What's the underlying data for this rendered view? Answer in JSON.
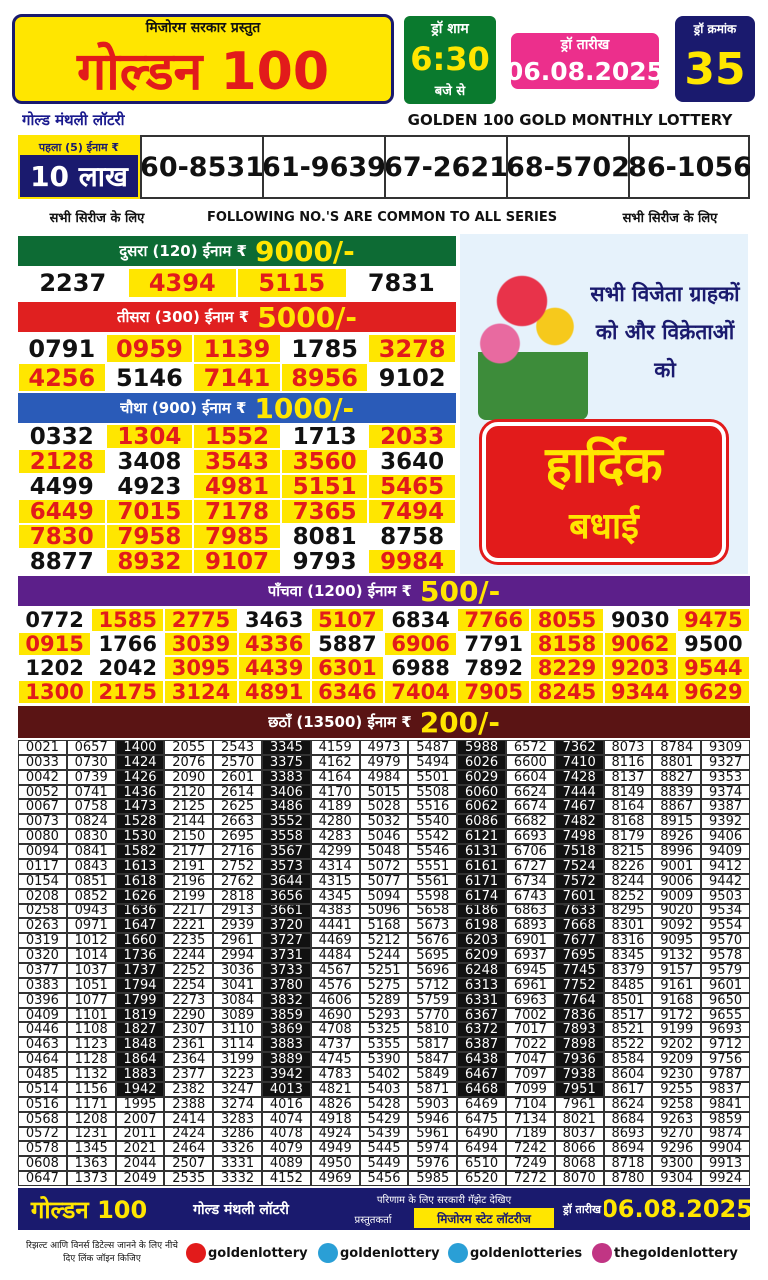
{
  "header": {
    "presenter": "मिजोरम सरकार प्रस्तुत",
    "title": "गोल्डन 100",
    "draw_time_label": "ड्रॉ शाम",
    "draw_time": "6:30",
    "draw_time_suffix": "बजे से",
    "draw_date_label": "ड्रॉ तारीख",
    "draw_date": "06.08.2025",
    "draw_no_label": "ड्रॉ क्रमांक",
    "draw_no": "35",
    "subtitle_hi": "गोल्ड मंथली लॉटरी",
    "subtitle_en": "GOLDEN 100 GOLD MONTHLY LOTTERY"
  },
  "first_prize": {
    "label": "पहला (5) ईनाम ₹",
    "amount": "10 लाख",
    "numbers": [
      "60-8531",
      "61-9639",
      "67-2621",
      "68-5702",
      "86-1056"
    ]
  },
  "common_note": {
    "left": "सभी सिरीज के लिए",
    "center": "FOLLOWING NO.'S ARE COMMON TO ALL SERIES",
    "right": "सभी सिरीज के लिए"
  },
  "prizes": [
    {
      "label": "दुसरा (120) ईनाम ₹",
      "amount": "9000/-",
      "rows": [
        [
          "2237",
          "4394",
          "5115",
          "7831"
        ]
      ]
    },
    {
      "label": "तीसरा (300) ईनाम ₹",
      "amount": "5000/-",
      "rows": [
        [
          "0791",
          "0959",
          "1139",
          "1785",
          "3278"
        ],
        [
          "4256",
          "5146",
          "7141",
          "8956",
          "9102"
        ]
      ]
    },
    {
      "label": "चौथा (900) ईनाम ₹",
      "amount": "1000/-",
      "rows": [
        [
          "0332",
          "1304",
          "1552",
          "1713",
          "2033"
        ],
        [
          "2128",
          "3408",
          "3543",
          "3560",
          "3640"
        ],
        [
          "4499",
          "4923",
          "4981",
          "5151",
          "5465"
        ],
        [
          "6449",
          "7015",
          "7178",
          "7365",
          "7494"
        ],
        [
          "7830",
          "7958",
          "7985",
          "8081",
          "8758"
        ],
        [
          "8877",
          "8932",
          "9107",
          "9793",
          "9984"
        ]
      ]
    },
    {
      "label": "पाँचवा (1200) ईनाम ₹",
      "amount": "500/-",
      "rows": [
        [
          "0772",
          "1585",
          "2775",
          "3463",
          "5107",
          "6834",
          "7766",
          "8055",
          "9030",
          "9475"
        ],
        [
          "0915",
          "1766",
          "3039",
          "4336",
          "5887",
          "6906",
          "7791",
          "8158",
          "9062",
          "9500"
        ],
        [
          "1202",
          "2042",
          "3095",
          "4439",
          "6301",
          "6988",
          "7892",
          "8229",
          "9203",
          "9544"
        ],
        [
          "1300",
          "2175",
          "3124",
          "4891",
          "6346",
          "7404",
          "7905",
          "8245",
          "9344",
          "9629"
        ]
      ]
    }
  ],
  "sixth_prize": {
    "label": "छठाँ (13500) ईनाम ₹",
    "amount": "200/-",
    "columns": [
      [
        "0021",
        "0033",
        "0042",
        "0052",
        "0067",
        "0073",
        "0080",
        "0094",
        "0117",
        "0154",
        "0208",
        "0258",
        "0263",
        "0319",
        "0320",
        "0377",
        "0383",
        "0396",
        "0409",
        "0446",
        "0463",
        "0464",
        "0485",
        "0514",
        "0516",
        "0568",
        "0572",
        "0578",
        "0608",
        "0647"
      ],
      [
        "0657",
        "0730",
        "0739",
        "0741",
        "0758",
        "0824",
        "0830",
        "0841",
        "0843",
        "0851",
        "0852",
        "0943",
        "0971",
        "1012",
        "1014",
        "1037",
        "1051",
        "1077",
        "1101",
        "1108",
        "1123",
        "1128",
        "1132",
        "1156",
        "1171",
        "1208",
        "1231",
        "1345",
        "1363",
        "1373"
      ],
      [
        "1400",
        "1424",
        "1426",
        "1436",
        "1473",
        "1528",
        "1530",
        "1582",
        "1613",
        "1618",
        "1626",
        "1636",
        "1647",
        "1660",
        "1736",
        "1737",
        "1794",
        "1799",
        "1819",
        "1827",
        "1848",
        "1864",
        "1883",
        "1942",
        "1995",
        "2007",
        "2011",
        "2021",
        "2044",
        "2049"
      ],
      [
        "2055",
        "2076",
        "2090",
        "2120",
        "2125",
        "2144",
        "2150",
        "2177",
        "2191",
        "2196",
        "2199",
        "2217",
        "2221",
        "2235",
        "2244",
        "2252",
        "2254",
        "2273",
        "2290",
        "2307",
        "2361",
        "2364",
        "2377",
        "2382",
        "2388",
        "2414",
        "2424",
        "2464",
        "2507",
        "2535"
      ],
      [
        "2543",
        "2570",
        "2601",
        "2614",
        "2625",
        "2663",
        "2695",
        "2716",
        "2752",
        "2762",
        "2818",
        "2913",
        "2939",
        "2961",
        "2994",
        "3036",
        "3041",
        "3084",
        "3089",
        "3110",
        "3114",
        "3199",
        "3223",
        "3247",
        "3274",
        "3283",
        "3286",
        "3326",
        "3331",
        "3332"
      ],
      [
        "3345",
        "3375",
        "3383",
        "3406",
        "3486",
        "3552",
        "3558",
        "3567",
        "3573",
        "3644",
        "3656",
        "3661",
        "3720",
        "3727",
        "3731",
        "3733",
        "3780",
        "3832",
        "3859",
        "3869",
        "3883",
        "3889",
        "3942",
        "4013",
        "4016",
        "4074",
        "4078",
        "4079",
        "4089",
        "4152"
      ],
      [
        "4159",
        "4162",
        "4164",
        "4170",
        "4189",
        "4280",
        "4283",
        "4299",
        "4314",
        "4315",
        "4345",
        "4383",
        "4441",
        "4469",
        "4484",
        "4567",
        "4576",
        "4606",
        "4690",
        "4708",
        "4737",
        "4745",
        "4783",
        "4821",
        "4826",
        "4918",
        "4924",
        "4949",
        "4950",
        "4969"
      ],
      [
        "4973",
        "4979",
        "4984",
        "5015",
        "5028",
        "5032",
        "5046",
        "5048",
        "5072",
        "5077",
        "5094",
        "5096",
        "5168",
        "5212",
        "5244",
        "5251",
        "5275",
        "5289",
        "5293",
        "5325",
        "5355",
        "5390",
        "5402",
        "5403",
        "5428",
        "5429",
        "5439",
        "5445",
        "5449",
        "5456"
      ],
      [
        "5487",
        "5494",
        "5501",
        "5508",
        "5516",
        "5540",
        "5542",
        "5546",
        "5551",
        "5561",
        "5598",
        "5658",
        "5673",
        "5676",
        "5695",
        "5696",
        "5712",
        "5759",
        "5770",
        "5810",
        "5817",
        "5847",
        "5849",
        "5871",
        "5903",
        "5946",
        "5961",
        "5974",
        "5976",
        "5985"
      ],
      [
        "5988",
        "6026",
        "6029",
        "6060",
        "6062",
        "6086",
        "6121",
        "6131",
        "6161",
        "6171",
        "6174",
        "6186",
        "6198",
        "6203",
        "6209",
        "6248",
        "6313",
        "6331",
        "6367",
        "6372",
        "6387",
        "6438",
        "6467",
        "6468",
        "6469",
        "6475",
        "6490",
        "6494",
        "6510",
        "6520"
      ],
      [
        "6572",
        "6600",
        "6604",
        "6624",
        "6674",
        "6682",
        "6693",
        "6706",
        "6727",
        "6734",
        "6743",
        "6863",
        "6893",
        "6901",
        "6937",
        "6945",
        "6961",
        "6963",
        "7002",
        "7017",
        "7022",
        "7047",
        "7097",
        "7099",
        "7104",
        "7134",
        "7189",
        "7242",
        "7249",
        "7272"
      ],
      [
        "7362",
        "7410",
        "7428",
        "7444",
        "7467",
        "7482",
        "7498",
        "7518",
        "7524",
        "7572",
        "7601",
        "7633",
        "7668",
        "7677",
        "7695",
        "7745",
        "7752",
        "7764",
        "7836",
        "7893",
        "7898",
        "7936",
        "7938",
        "7951",
        "7961",
        "8021",
        "8037",
        "8066",
        "8068",
        "8070"
      ],
      [
        "8073",
        "8116",
        "8137",
        "8149",
        "8164",
        "8168",
        "8179",
        "8215",
        "8226",
        "8244",
        "8252",
        "8295",
        "8301",
        "8316",
        "8345",
        "8379",
        "8485",
        "8501",
        "8517",
        "8521",
        "8522",
        "8584",
        "8604",
        "8617",
        "8624",
        "8684",
        "8693",
        "8694",
        "8718",
        "8780"
      ],
      [
        "8784",
        "8801",
        "8827",
        "8839",
        "8867",
        "8915",
        "8926",
        "8996",
        "9001",
        "9006",
        "9009",
        "9020",
        "9092",
        "9095",
        "9132",
        "9157",
        "9161",
        "9168",
        "9172",
        "9199",
        "9202",
        "9209",
        "9230",
        "9255",
        "9258",
        "9263",
        "9270",
        "9296",
        "9300",
        "9304"
      ],
      [
        "9309",
        "9327",
        "9353",
        "9374",
        "9387",
        "9392",
        "9406",
        "9409",
        "9412",
        "9442",
        "9503",
        "9534",
        "9554",
        "9570",
        "9578",
        "9579",
        "9601",
        "9650",
        "9655",
        "9693",
        "9712",
        "9756",
        "9787",
        "9837",
        "9841",
        "9859",
        "9874",
        "9904",
        "9913",
        "9924"
      ]
    ]
  },
  "ad": {
    "message": "सभी विजेता ग्राहकों को और विक्रेताओं को",
    "greeting_1": "हार्दिक",
    "greeting_2": "बधाई"
  },
  "footer": {
    "title": "गोल्डन 100",
    "subtitle": "गोल्ड मंथली लॉटरी",
    "gazette_note": "परिणाम के लिए सरकारी गॅझेट देखिए",
    "presenter_label": "प्रस्तुतकर्ता",
    "presenter": "मिजोरम स्टेट लॉटरीज",
    "date_label": "ड्रॉ तारीख",
    "date": "06.08.2025",
    "join_note": "रिझल्ट आणि विनर्स डिटेल्स जानने के लिए नीचे दिए लिंक जॉइन किजिए",
    "socials": [
      "goldenlottery",
      "goldenlottery",
      "goldenlotteries",
      "thegoldenlottery"
    ]
  }
}
